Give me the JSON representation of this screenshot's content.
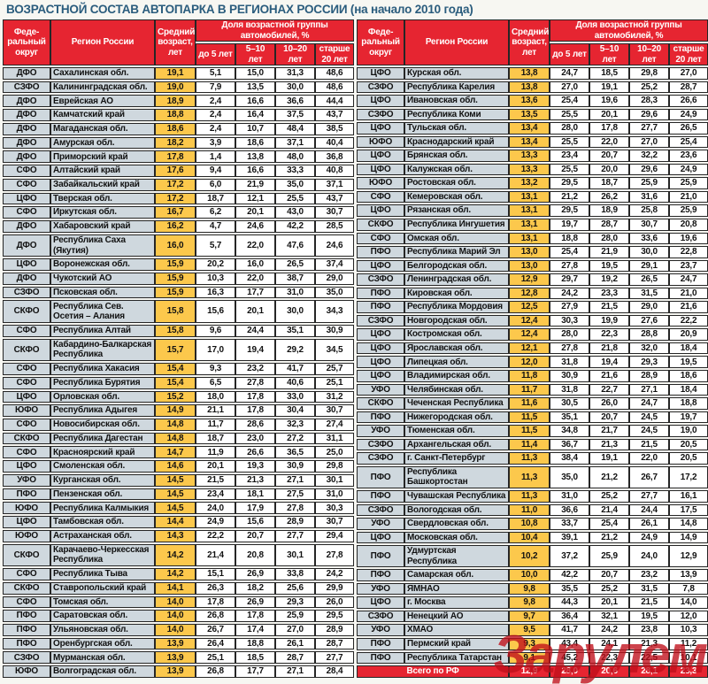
{
  "title": "ВОЗРАСТНОЙ СОСТАВ АВТОПАРКА В РЕГИОНАХ РОССИИ (на начало 2010 года)",
  "colors": {
    "header_red": "#e62531",
    "age_yellow": "#fcc84c",
    "label_gray": "#cfd8de",
    "title_blue": "#2a5c7d",
    "watermark_red": "#c00f1a"
  },
  "watermark": "Зарулем",
  "header": {
    "okrug": "Феде-\nральный\nокруг",
    "region": "Регион России",
    "avg_age": "Средний\nвозраст,\nлет",
    "share_group": "Доля возрастной группы автомобилей, %",
    "under5": "до 5 лет",
    "y5_10": "5–10 лет",
    "y10_20": "10–20 лет",
    "over20": "старше\n20 лет"
  },
  "tables": {
    "left": {
      "rows": [
        [
          "ДФО",
          "Сахалинская обл.",
          "19,1",
          "5,1",
          "15,0",
          "31,3",
          "48,6"
        ],
        [
          "СЗФО",
          "Калининградская обл.",
          "19,0",
          "7,9",
          "13,5",
          "30,0",
          "48,6"
        ],
        [
          "ДФО",
          "Еврейская АО",
          "18,9",
          "2,4",
          "16,6",
          "36,6",
          "44,4"
        ],
        [
          "ДФО",
          "Камчатский край",
          "18,8",
          "2,4",
          "16,4",
          "37,5",
          "43,7"
        ],
        [
          "ДФО",
          "Магаданская обл.",
          "18,6",
          "2,4",
          "10,7",
          "48,4",
          "38,5"
        ],
        [
          "ДФО",
          "Амурская обл.",
          "18,2",
          "3,9",
          "18,6",
          "37,1",
          "40,4"
        ],
        [
          "ДФО",
          "Приморский край",
          "17,8",
          "1,4",
          "13,8",
          "48,0",
          "36,8"
        ],
        [
          "СФО",
          "Алтайский край",
          "17,6",
          "9,4",
          "16,6",
          "33,3",
          "40,8"
        ],
        [
          "СФО",
          "Забайкальский край",
          "17,2",
          "6,0",
          "21,9",
          "35,0",
          "37,1"
        ],
        [
          "ЦФО",
          "Тверская обл.",
          "17,2",
          "18,7",
          "12,1",
          "25,5",
          "43,7"
        ],
        [
          "СФО",
          "Иркутская обл.",
          "16,7",
          "6,2",
          "20,1",
          "43,0",
          "30,7"
        ],
        [
          "ДФО",
          "Хабаровский край",
          "16,2",
          "4,7",
          "24,6",
          "42,2",
          "28,5"
        ],
        [
          "ДФО",
          "Республика Саха (Якутия)",
          "16,0",
          "5,7",
          "22,0",
          "47,6",
          "24,6"
        ],
        [
          "ЦФО",
          "Воронежская обл.",
          "15,9",
          "20,2",
          "16,0",
          "26,5",
          "37,4"
        ],
        [
          "ДФО",
          "Чукотский АО",
          "15,9",
          "10,3",
          "22,0",
          "38,7",
          "29,0"
        ],
        [
          "СЗФО",
          "Псковская обл.",
          "15,9",
          "16,3",
          "17,7",
          "31,0",
          "35,0"
        ],
        [
          "СКФО",
          "Республика Сев. Осетия – Алания",
          "15,8",
          "15,6",
          "20,1",
          "30,0",
          "34,3"
        ],
        [
          "СФО",
          "Республика Алтай",
          "15,8",
          "9,6",
          "24,4",
          "35,1",
          "30,9"
        ],
        [
          "СКФО",
          "Кабардино-Балкарская Республика",
          "15,7",
          "17,0",
          "19,4",
          "29,2",
          "34,5"
        ],
        [
          "СФО",
          "Республика Хакасия",
          "15,4",
          "9,3",
          "23,2",
          "41,7",
          "25,7"
        ],
        [
          "СФО",
          "Республика Бурятия",
          "15,4",
          "6,5",
          "27,8",
          "40,6",
          "25,1"
        ],
        [
          "ЦФО",
          "Орловская обл.",
          "15,2",
          "18,0",
          "17,8",
          "33,0",
          "31,2"
        ],
        [
          "ЮФО",
          "Республика Адыгея",
          "14,9",
          "21,1",
          "17,8",
          "30,4",
          "30,7"
        ],
        [
          "СФО",
          "Новосибирская обл.",
          "14,8",
          "11,7",
          "28,6",
          "32,3",
          "27,4"
        ],
        [
          "СКФО",
          "Республика Дагестан",
          "14,8",
          "18,7",
          "23,0",
          "27,2",
          "31,1"
        ],
        [
          "СФО",
          "Красноярский край",
          "14,7",
          "11,9",
          "26,6",
          "36,5",
          "25,0"
        ],
        [
          "ЦФО",
          "Смоленская обл.",
          "14,6",
          "20,1",
          "19,3",
          "30,9",
          "29,8"
        ],
        [
          "УФО",
          "Курганская обл.",
          "14,5",
          "21,5",
          "21,3",
          "27,1",
          "30,1"
        ],
        [
          "ПФО",
          "Пензенская обл.",
          "14,5",
          "23,4",
          "18,1",
          "27,5",
          "31,0"
        ],
        [
          "ЮФО",
          "Республика Калмыкия",
          "14,5",
          "24,0",
          "17,9",
          "27,8",
          "30,3"
        ],
        [
          "ЦФО",
          "Тамбовская обл.",
          "14,4",
          "24,9",
          "15,6",
          "28,9",
          "30,7"
        ],
        [
          "ЮФО",
          "Астраханская обл.",
          "14,3",
          "22,2",
          "20,7",
          "27,7",
          "29,4"
        ],
        [
          "СКФО",
          "Карачаево-Черкесская Республика",
          "14,2",
          "21,4",
          "20,8",
          "30,1",
          "27,8"
        ],
        [
          "СФО",
          "Республика Тыва",
          "14,2",
          "15,1",
          "26,9",
          "33,8",
          "24,2"
        ],
        [
          "СКФО",
          "Ставропольский край",
          "14,1",
          "26,3",
          "18,2",
          "25,6",
          "29,9"
        ],
        [
          "СФО",
          "Томская обл.",
          "14,0",
          "17,8",
          "26,9",
          "29,3",
          "26,0"
        ],
        [
          "ПФО",
          "Саратовская обл.",
          "14,0",
          "26,8",
          "17,8",
          "25,9",
          "29,5"
        ],
        [
          "ПФО",
          "Ульяновская обл.",
          "14,0",
          "26,7",
          "17,4",
          "27,0",
          "28,9"
        ],
        [
          "ПФО",
          "Оренбургская обл.",
          "13,9",
          "26,4",
          "18,8",
          "26,1",
          "28,7"
        ],
        [
          "СЗФО",
          "Мурманская обл.",
          "13,9",
          "25,1",
          "18,5",
          "28,7",
          "27,7"
        ],
        [
          "ЮФО",
          "Волгоградская обл.",
          "13,9",
          "26,8",
          "17,7",
          "27,1",
          "28,4"
        ]
      ]
    },
    "right": {
      "rows": [
        [
          "ЦФО",
          "Курская обл.",
          "13,8",
          "24,7",
          "18,5",
          "29,8",
          "27,0"
        ],
        [
          "СЗФО",
          "Республика Карелия",
          "13,8",
          "27,0",
          "19,1",
          "25,2",
          "28,7"
        ],
        [
          "ЦФО",
          "Ивановская обл.",
          "13,6",
          "25,4",
          "19,6",
          "28,3",
          "26,6"
        ],
        [
          "СЗФО",
          "Республика Коми",
          "13,5",
          "25,5",
          "20,1",
          "29,6",
          "24,9"
        ],
        [
          "ЦФО",
          "Тульская обл.",
          "13,4",
          "28,0",
          "17,8",
          "27,7",
          "26,5"
        ],
        [
          "ЮФО",
          "Краснодарский край",
          "13,4",
          "25,5",
          "22,0",
          "27,0",
          "25,4"
        ],
        [
          "ЦФО",
          "Брянская обл.",
          "13,3",
          "23,4",
          "20,7",
          "32,2",
          "23,6"
        ],
        [
          "ЦФО",
          "Калужская обл.",
          "13,3",
          "25,5",
          "20,0",
          "29,6",
          "24,9"
        ],
        [
          "ЮФО",
          "Ростовская обл.",
          "13,2",
          "29,5",
          "18,7",
          "25,9",
          "25,9"
        ],
        [
          "СФО",
          "Кемеровская обл.",
          "13,1",
          "21,2",
          "26,2",
          "31,6",
          "21,0"
        ],
        [
          "ЦФО",
          "Рязанская обл.",
          "13,1",
          "29,5",
          "18,9",
          "25,8",
          "25,9"
        ],
        [
          "СКФО",
          "Республика Ингушетия",
          "13,1",
          "19,7",
          "28,7",
          "30,7",
          "20,8"
        ],
        [
          "СФО",
          "Омская обл.",
          "13,1",
          "18,8",
          "28,0",
          "33,6",
          "19,6"
        ],
        [
          "ПФО",
          "Республика Марий Эл",
          "13,0",
          "25,4",
          "21,9",
          "30,0",
          "22,8"
        ],
        [
          "ЦФО",
          "Белгородская обл.",
          "13,0",
          "27,8",
          "19,5",
          "29,1",
          "23,7"
        ],
        [
          "СЗФО",
          "Ленинградская обл.",
          "12,9",
          "29,7",
          "19,2",
          "26,5",
          "24,7"
        ],
        [
          "ПФО",
          "Кировская обл.",
          "12,8",
          "24,2",
          "23,3",
          "31,5",
          "21,0"
        ],
        [
          "ПФО",
          "Республика Мордовия",
          "12,5",
          "27,9",
          "21,5",
          "29,0",
          "21,6"
        ],
        [
          "СЗФО",
          "Новгородская обл.",
          "12,4",
          "30,3",
          "19,9",
          "27,6",
          "22,2"
        ],
        [
          "ЦФО",
          "Костромская обл.",
          "12,4",
          "28,0",
          "22,3",
          "28,8",
          "20,9"
        ],
        [
          "ЦФО",
          "Ярославская обл.",
          "12,1",
          "27,8",
          "21,8",
          "32,0",
          "18,4"
        ],
        [
          "ЦФО",
          "Липецкая обл.",
          "12,0",
          "31,8",
          "19,4",
          "29,3",
          "19,5"
        ],
        [
          "ЦФО",
          "Владимирская обл.",
          "11,8",
          "30,9",
          "21,6",
          "28,9",
          "18,6"
        ],
        [
          "УФО",
          "Челябинская обл.",
          "11,7",
          "31,8",
          "22,7",
          "27,1",
          "18,4"
        ],
        [
          "СКФО",
          "Чеченская Республика",
          "11,6",
          "30,5",
          "26,0",
          "24,7",
          "18,8"
        ],
        [
          "ПФО",
          "Нижегородская обл.",
          "11,5",
          "35,1",
          "20,7",
          "24,5",
          "19,7"
        ],
        [
          "УФО",
          "Тюменская обл.",
          "11,5",
          "34,8",
          "21,7",
          "24,5",
          "19,0"
        ],
        [
          "СЗФО",
          "Архангельская обл.",
          "11,4",
          "36,7",
          "21,3",
          "21,5",
          "20,5"
        ],
        [
          "СЗФО",
          "г. Санкт-Петербург",
          "11,3",
          "38,4",
          "19,1",
          "22,0",
          "20,5"
        ],
        [
          "ПФО",
          "Республика Башкортостан",
          "11,3",
          "35,0",
          "21,2",
          "26,7",
          "17,2"
        ],
        [
          "ПФО",
          "Чувашская Республика",
          "11,3",
          "31,0",
          "25,2",
          "27,7",
          "16,1"
        ],
        [
          "СЗФО",
          "Вологодская обл.",
          "11,0",
          "36,6",
          "21,4",
          "24,4",
          "17,5"
        ],
        [
          "УФО",
          "Свердловская обл.",
          "10,8",
          "33,7",
          "25,4",
          "26,1",
          "14,8"
        ],
        [
          "ЦФО",
          "Московская обл.",
          "10,4",
          "39,1",
          "21,2",
          "24,9",
          "14,9"
        ],
        [
          "ПФО",
          "Удмуртская Республика",
          "10,2",
          "37,2",
          "25,9",
          "24,0",
          "12,9"
        ],
        [
          "ПФО",
          "Самарская обл.",
          "10,0",
          "42,2",
          "20,7",
          "23,2",
          "13,9"
        ],
        [
          "УФО",
          "ЯМНАО",
          "9,8",
          "35,5",
          "25,2",
          "31,5",
          "7,8"
        ],
        [
          "ЦФО",
          "г. Москва",
          "9,8",
          "44,3",
          "20,1",
          "21,5",
          "14,0"
        ],
        [
          "СЗФО",
          "Ненецкий АО",
          "9,7",
          "36,4",
          "32,1",
          "19,5",
          "12,0"
        ],
        [
          "УФО",
          "ХМАО",
          "9,5",
          "41,7",
          "24,2",
          "23,8",
          "10,3"
        ],
        [
          "ПФО",
          "Пермский край",
          "9,3",
          "43,4",
          "24,1",
          "21,3",
          "11,2"
        ],
        [
          "ПФО",
          "Республика Татарстан",
          "9,1",
          "45,2",
          "22,3",
          "22,5",
          "10,1"
        ]
      ],
      "total": [
        "Всего по РФ",
        "12,9",
        "28,0",
        "20,6",
        "28,1",
        "23,3"
      ]
    }
  }
}
